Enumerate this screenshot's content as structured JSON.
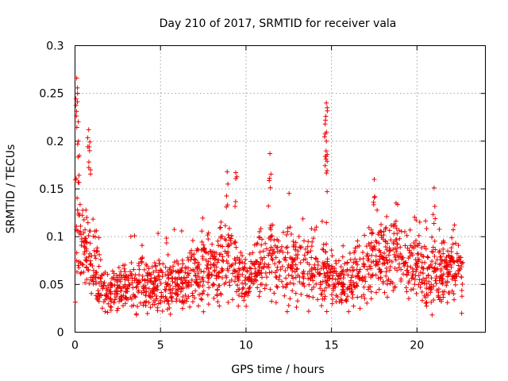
{
  "chart_data": {
    "type": "scatter",
    "title": "Day 210 of 2017, SRMTID for receiver vala",
    "xlabel": "GPS time / hours",
    "ylabel": "SRMTID / TECUs",
    "xlim": [
      0,
      24
    ],
    "ylim": [
      0,
      0.3
    ],
    "x_ticks": [
      "0",
      "5",
      "10",
      "15",
      "20"
    ],
    "y_ticks": [
      "0",
      "0.05",
      "0.1",
      "0.15",
      "0.2",
      "0.25",
      "0.3"
    ],
    "grid": true,
    "marker": "+",
    "color": "#ee0000",
    "series": [
      {
        "name": "SRMTID",
        "description": "dense red + markers, approx 0.02-0.27 TECUs over 0-22.7 h",
        "profile_hours": [
          0,
          0.5,
          1,
          1.5,
          2,
          3,
          4,
          5,
          6,
          7,
          8,
          9,
          10,
          11,
          12,
          13,
          14,
          15,
          16,
          17,
          18,
          19,
          20,
          21,
          22,
          22.7
        ],
        "profile_level": [
          0.12,
          0.09,
          0.07,
          0.05,
          0.04,
          0.05,
          0.05,
          0.05,
          0.05,
          0.06,
          0.065,
          0.075,
          0.05,
          0.08,
          0.075,
          0.065,
          0.065,
          0.055,
          0.05,
          0.065,
          0.085,
          0.08,
          0.065,
          0.06,
          0.065,
          0.06
        ],
        "peaks": [
          {
            "x": 0.1,
            "y": 0.266
          },
          {
            "x": 0.15,
            "y": 0.25
          },
          {
            "x": 0.2,
            "y": 0.2
          },
          {
            "x": 0.8,
            "y": 0.212
          },
          {
            "x": 0.85,
            "y": 0.19
          },
          {
            "x": 8.9,
            "y": 0.168
          },
          {
            "x": 9.4,
            "y": 0.167
          },
          {
            "x": 11.4,
            "y": 0.187
          },
          {
            "x": 14.7,
            "y": 0.24
          },
          {
            "x": 14.65,
            "y": 0.222
          },
          {
            "x": 14.7,
            "y": 0.2
          },
          {
            "x": 14.75,
            "y": 0.186
          },
          {
            "x": 17.5,
            "y": 0.16
          },
          {
            "x": 21.0,
            "y": 0.151
          }
        ]
      }
    ]
  }
}
